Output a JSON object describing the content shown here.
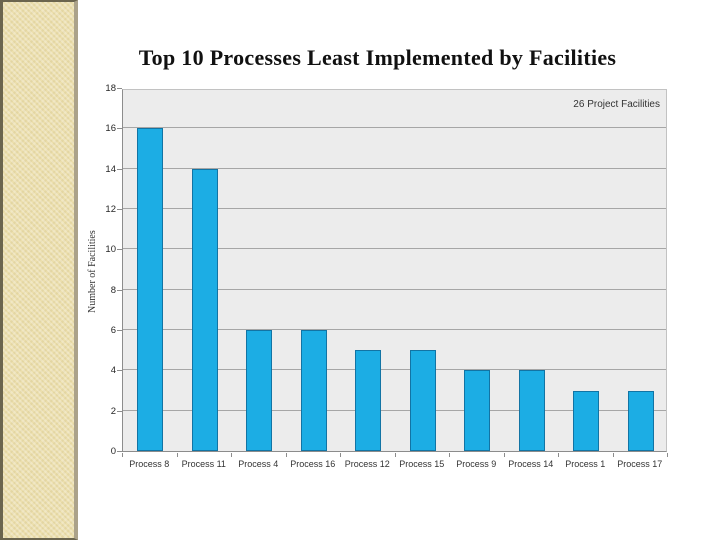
{
  "slide": {
    "background": "#FFFFFF",
    "sidebar": {
      "fill": "#ECDFAD",
      "edge_dark": "#6B654E",
      "edge_light": "#ABA28A"
    }
  },
  "chart_data": {
    "type": "bar",
    "title": "Top 10 Processes Least Implemented by Facilities",
    "categories": [
      "Process 8",
      "Process 11",
      "Process 4",
      "Process 16",
      "Process 12",
      "Process 15",
      "Process 9",
      "Process 14",
      "Process 1",
      "Process 17"
    ],
    "values": [
      16,
      14,
      6,
      6,
      5,
      5,
      4,
      4,
      3,
      3
    ],
    "xlabel": "",
    "ylabel": "Number of Facilities",
    "ylim": [
      0,
      18
    ],
    "ytick_step": 2,
    "grid": true,
    "legend": {
      "label": "26 Project Facilities",
      "position": "top-right-inside"
    },
    "colors": {
      "bar_fill": "#1CADE4",
      "bar_border": "#1274A4",
      "plot_background": "#ECECEC",
      "gridline": "#A6A6A6",
      "axis_line": "#8C8C8C",
      "label_text": "#333333",
      "title_text": "#111111"
    }
  }
}
